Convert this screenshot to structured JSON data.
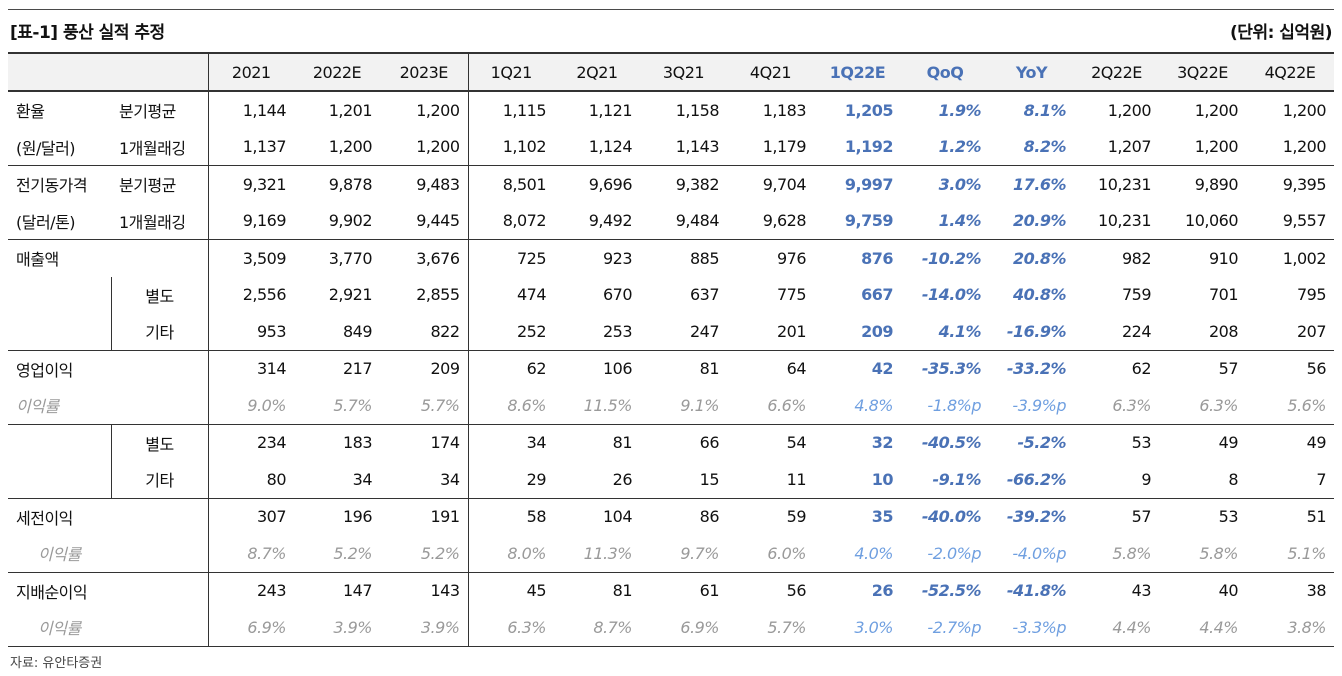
{
  "header": {
    "title": "[표-1] 풍산 실적 추정",
    "unit": "(단위: 십억원)"
  },
  "columns": [
    "2021",
    "2022E",
    "2023E",
    "1Q21",
    "2Q21",
    "3Q21",
    "4Q21",
    "1Q22E",
    "QoQ",
    "YoY",
    "2Q22E",
    "3Q22E",
    "4Q22E"
  ],
  "rows": [
    {
      "label": "환율",
      "sub": "분기평균",
      "values": [
        "1,144",
        "1,201",
        "1,200",
        "1,115",
        "1,121",
        "1,158",
        "1,183",
        "1,205",
        "1.9%",
        "8.1%",
        "1,200",
        "1,200",
        "1,200"
      ]
    },
    {
      "label": "(원/달러)",
      "sub": "1개월래깅",
      "values": [
        "1,137",
        "1,200",
        "1,200",
        "1,102",
        "1,124",
        "1,143",
        "1,179",
        "1,192",
        "1.2%",
        "8.2%",
        "1,207",
        "1,200",
        "1,200"
      ]
    },
    {
      "label": "전기동가격",
      "sub": "분기평균",
      "values": [
        "9,321",
        "9,878",
        "9,483",
        "8,501",
        "9,696",
        "9,382",
        "9,704",
        "9,997",
        "3.0%",
        "17.6%",
        "10,231",
        "9,890",
        "9,395"
      ]
    },
    {
      "label": "(달러/톤)",
      "sub": "1개월래깅",
      "values": [
        "9,169",
        "9,902",
        "9,445",
        "8,072",
        "9,492",
        "9,484",
        "9,628",
        "9,759",
        "1.4%",
        "20.9%",
        "10,231",
        "10,060",
        "9,557"
      ]
    },
    {
      "label": "매출액",
      "sub": "",
      "values": [
        "3,509",
        "3,770",
        "3,676",
        "725",
        "923",
        "885",
        "976",
        "876",
        "-10.2%",
        "20.8%",
        "982",
        "910",
        "1,002"
      ]
    },
    {
      "label": "",
      "sub": "별도",
      "values": [
        "2,556",
        "2,921",
        "2,855",
        "474",
        "670",
        "637",
        "775",
        "667",
        "-14.0%",
        "40.8%",
        "759",
        "701",
        "795"
      ]
    },
    {
      "label": "",
      "sub": "기타",
      "values": [
        "953",
        "849",
        "822",
        "252",
        "253",
        "247",
        "201",
        "209",
        "4.1%",
        "-16.9%",
        "224",
        "208",
        "207"
      ]
    },
    {
      "label": "영업이익",
      "sub": "",
      "values": [
        "314",
        "217",
        "209",
        "62",
        "106",
        "81",
        "64",
        "42",
        "-35.3%",
        "-33.2%",
        "62",
        "57",
        "56"
      ]
    },
    {
      "label": "이익률",
      "sub": "",
      "values": [
        "9.0%",
        "5.7%",
        "5.7%",
        "8.6%",
        "11.5%",
        "9.1%",
        "6.6%",
        "4.8%",
        "-1.8%p",
        "-3.9%p",
        "6.3%",
        "6.3%",
        "5.6%"
      ]
    },
    {
      "label": "",
      "sub": "별도",
      "values": [
        "234",
        "183",
        "174",
        "34",
        "81",
        "66",
        "54",
        "32",
        "-40.5%",
        "-5.2%",
        "53",
        "49",
        "49"
      ]
    },
    {
      "label": "",
      "sub": "기타",
      "values": [
        "80",
        "34",
        "34",
        "29",
        "26",
        "15",
        "11",
        "10",
        "-9.1%",
        "-66.2%",
        "9",
        "8",
        "7"
      ]
    },
    {
      "label": "세전이익",
      "sub": "",
      "values": [
        "307",
        "196",
        "191",
        "58",
        "104",
        "86",
        "59",
        "35",
        "-40.0%",
        "-39.2%",
        "57",
        "53",
        "51"
      ]
    },
    {
      "label": "이익률",
      "sub": "",
      "values": [
        "8.7%",
        "5.2%",
        "5.2%",
        "8.0%",
        "11.3%",
        "9.7%",
        "6.0%",
        "4.0%",
        "-2.0%p",
        "-4.0%p",
        "5.8%",
        "5.8%",
        "5.1%"
      ]
    },
    {
      "label": "지배순이익",
      "sub": "",
      "values": [
        "243",
        "147",
        "143",
        "45",
        "81",
        "61",
        "56",
        "26",
        "-52.5%",
        "-41.8%",
        "43",
        "40",
        "38"
      ]
    },
    {
      "label": "이익률",
      "sub": "",
      "values": [
        "6.9%",
        "3.9%",
        "3.9%",
        "6.3%",
        "8.7%",
        "6.9%",
        "5.7%",
        "3.0%",
        "-2.7%p",
        "-3.3%p",
        "4.4%",
        "4.4%",
        "3.8%"
      ]
    }
  ],
  "footer": {
    "source": "자료: 유안타증권"
  },
  "colors": {
    "highlight": "#4a72b6",
    "margin_text": "#9a9a9a",
    "header_bg": "#f2f2f2"
  }
}
